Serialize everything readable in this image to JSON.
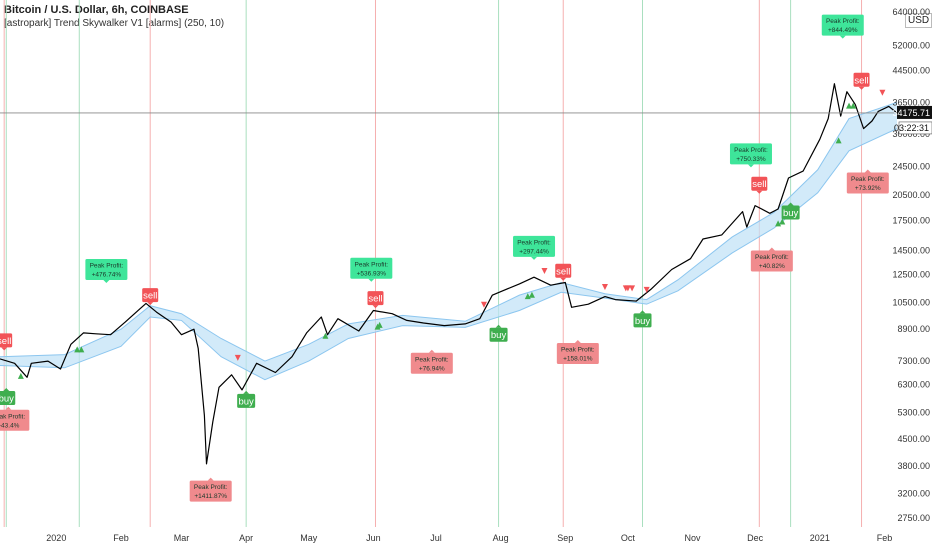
{
  "header": {
    "title": "Bitcoin / U.S. Dollar, 6h, COINBASE",
    "indicator": "[astropark] Trend Skywalker V1 [alarms] (250, 10)",
    "currency_button": "USD"
  },
  "price_badges": {
    "price": "34175.71",
    "timer": "03:22:31"
  },
  "colors": {
    "price": "#000000",
    "band_fill": "#bfe1f7",
    "band_line": "#8cc6ef",
    "buy": "#3fae4f",
    "sell": "#f25357",
    "profit_buy": "#3ee59a",
    "profit_sell": "#f08a8d",
    "vline_red": "#f5b0b0",
    "vline_green": "#a9dfbf",
    "badge": "#131722"
  },
  "chart_data": {
    "type": "line",
    "y_scale": "log",
    "ylim": [
      2600,
      69000
    ],
    "y_ticks": [
      64000,
      52000,
      44500,
      36500,
      30000,
      24500,
      20500,
      17500,
      14500,
      12500,
      10500,
      8900,
      7300,
      6300,
      5300,
      4500,
      3800,
      3200,
      2750
    ],
    "x_ticks": [
      {
        "label": "2020",
        "date": "2020-01-01"
      },
      {
        "label": "Feb",
        "date": "2020-02-01"
      },
      {
        "label": "Mar",
        "date": "2020-03-01"
      },
      {
        "label": "Apr",
        "date": "2020-04-01"
      },
      {
        "label": "May",
        "date": "2020-05-01"
      },
      {
        "label": "Jun",
        "date": "2020-06-01"
      },
      {
        "label": "Jul",
        "date": "2020-07-01"
      },
      {
        "label": "Aug",
        "date": "2020-08-01"
      },
      {
        "label": "Sep",
        "date": "2020-09-01"
      },
      {
        "label": "Oct",
        "date": "2020-10-01"
      },
      {
        "label": "Nov",
        "date": "2020-11-01"
      },
      {
        "label": "Dec",
        "date": "2020-12-01"
      },
      {
        "label": "2021",
        "date": "2021-01-01"
      },
      {
        "label": "Feb",
        "date": "2021-02-01"
      }
    ],
    "x_range": [
      "2019-12-05",
      "2021-02-07"
    ],
    "price_series": [
      [
        "2019-12-05",
        7400
      ],
      [
        "2019-12-12",
        7200
      ],
      [
        "2019-12-18",
        6600
      ],
      [
        "2019-12-20",
        7200
      ],
      [
        "2019-12-28",
        7300
      ],
      [
        "2020-01-03",
        6950
      ],
      [
        "2020-01-08",
        8100
      ],
      [
        "2020-01-14",
        8700
      ],
      [
        "2020-01-20",
        8650
      ],
      [
        "2020-01-27",
        8600
      ],
      [
        "2020-02-03",
        9300
      ],
      [
        "2020-02-10",
        10100
      ],
      [
        "2020-02-13",
        10450
      ],
      [
        "2020-02-18",
        9900
      ],
      [
        "2020-02-25",
        9300
      ],
      [
        "2020-03-01",
        8600
      ],
      [
        "2020-03-07",
        8900
      ],
      [
        "2020-03-09",
        7900
      ],
      [
        "2020-03-12",
        5200
      ],
      [
        "2020-03-13",
        3850
      ],
      [
        "2020-03-16",
        5000
      ],
      [
        "2020-03-19",
        6200
      ],
      [
        "2020-03-25",
        6700
      ],
      [
        "2020-03-30",
        6100
      ],
      [
        "2020-04-06",
        7200
      ],
      [
        "2020-04-15",
        6800
      ],
      [
        "2020-04-23",
        7500
      ],
      [
        "2020-04-30",
        8700
      ],
      [
        "2020-05-07",
        9600
      ],
      [
        "2020-05-10",
        8600
      ],
      [
        "2020-05-15",
        9500
      ],
      [
        "2020-05-25",
        8800
      ],
      [
        "2020-06-01",
        10000
      ],
      [
        "2020-06-10",
        9800
      ],
      [
        "2020-06-17",
        9400
      ],
      [
        "2020-06-25",
        9250
      ],
      [
        "2020-07-05",
        9100
      ],
      [
        "2020-07-15",
        9200
      ],
      [
        "2020-07-22",
        9500
      ],
      [
        "2020-07-28",
        11000
      ],
      [
        "2020-08-02",
        11300
      ],
      [
        "2020-08-10",
        11800
      ],
      [
        "2020-08-17",
        12300
      ],
      [
        "2020-08-25",
        11700
      ],
      [
        "2020-09-01",
        11900
      ],
      [
        "2020-09-04",
        10200
      ],
      [
        "2020-09-12",
        10400
      ],
      [
        "2020-09-20",
        10900
      ],
      [
        "2020-09-25",
        10700
      ],
      [
        "2020-10-05",
        10600
      ],
      [
        "2020-10-12",
        11400
      ],
      [
        "2020-10-22",
        12900
      ],
      [
        "2020-10-31",
        13800
      ],
      [
        "2020-11-06",
        15600
      ],
      [
        "2020-11-15",
        16000
      ],
      [
        "2020-11-25",
        18500
      ],
      [
        "2020-11-27",
        16800
      ],
      [
        "2020-12-01",
        19200
      ],
      [
        "2020-12-08",
        18300
      ],
      [
        "2020-12-12",
        18800
      ],
      [
        "2020-12-17",
        22800
      ],
      [
        "2020-12-24",
        23800
      ],
      [
        "2021-01-01",
        29000
      ],
      [
        "2021-01-05",
        33000
      ],
      [
        "2021-01-08",
        41000
      ],
      [
        "2021-01-11",
        33500
      ],
      [
        "2021-01-14",
        39000
      ],
      [
        "2021-01-18",
        36000
      ],
      [
        "2021-01-22",
        31000
      ],
      [
        "2021-01-26",
        32500
      ],
      [
        "2021-01-29",
        34500
      ],
      [
        "2021-02-03",
        35600
      ],
      [
        "2021-02-07",
        34175
      ]
    ],
    "band_upper": [
      [
        "2019-12-05",
        7500
      ],
      [
        "2020-01-05",
        7600
      ],
      [
        "2020-02-01",
        8900
      ],
      [
        "2020-02-15",
        10300
      ],
      [
        "2020-03-01",
        9800
      ],
      [
        "2020-03-20",
        8400
      ],
      [
        "2020-04-10",
        7300
      ],
      [
        "2020-05-01",
        8100
      ],
      [
        "2020-05-20",
        9200
      ],
      [
        "2020-06-15",
        9700
      ],
      [
        "2020-07-15",
        9350
      ],
      [
        "2020-08-10",
        11000
      ],
      [
        "2020-08-30",
        11900
      ],
      [
        "2020-09-20",
        11100
      ],
      [
        "2020-10-10",
        10700
      ],
      [
        "2020-10-25",
        12100
      ],
      [
        "2020-11-20",
        15800
      ],
      [
        "2020-12-10",
        18400
      ],
      [
        "2020-12-31",
        24000
      ],
      [
        "2021-01-15",
        33000
      ],
      [
        "2021-02-07",
        36500
      ]
    ],
    "band_lower": [
      [
        "2019-12-05",
        7100
      ],
      [
        "2020-01-05",
        7000
      ],
      [
        "2020-02-01",
        8000
      ],
      [
        "2020-02-15",
        9600
      ],
      [
        "2020-03-01",
        9400
      ],
      [
        "2020-03-20",
        7500
      ],
      [
        "2020-04-10",
        6500
      ],
      [
        "2020-05-01",
        7300
      ],
      [
        "2020-05-20",
        8400
      ],
      [
        "2020-06-15",
        9100
      ],
      [
        "2020-07-15",
        9000
      ],
      [
        "2020-08-10",
        10000
      ],
      [
        "2020-08-30",
        11200
      ],
      [
        "2020-09-20",
        10800
      ],
      [
        "2020-10-10",
        10400
      ],
      [
        "2020-10-25",
        11300
      ],
      [
        "2020-11-20",
        14300
      ],
      [
        "2020-12-10",
        16700
      ],
      [
        "2020-12-31",
        20800
      ],
      [
        "2021-01-15",
        27000
      ],
      [
        "2021-02-07",
        31000
      ]
    ],
    "signals": [
      {
        "type": "sell",
        "label": "sell",
        "date": "2019-12-07",
        "price": 8300
      },
      {
        "type": "buy",
        "label": "buy",
        "date": "2019-12-08",
        "price": 5800
      },
      {
        "type": "sell",
        "label": "sell",
        "date": "2020-02-15",
        "price": 11000
      },
      {
        "type": "buy",
        "label": "buy",
        "date": "2020-04-01",
        "price": 5700
      },
      {
        "type": "sell",
        "label": "sell",
        "date": "2020-06-02",
        "price": 10800
      },
      {
        "type": "buy",
        "label": "buy",
        "date": "2020-07-31",
        "price": 8600
      },
      {
        "type": "sell",
        "label": "sell",
        "date": "2020-08-31",
        "price": 12800
      },
      {
        "type": "buy",
        "label": "buy",
        "date": "2020-10-08",
        "price": 9400
      },
      {
        "type": "sell",
        "label": "sell",
        "date": "2020-12-03",
        "price": 22000
      },
      {
        "type": "buy",
        "label": "buy",
        "date": "2020-12-18",
        "price": 18400
      },
      {
        "type": "sell",
        "label": "sell",
        "date": "2021-01-21",
        "price": 42000
      }
    ],
    "peak_profits": [
      {
        "kind": "short",
        "label": "Peak Profit:",
        "value": "+43.4%",
        "date": "2019-12-09",
        "price": 5050
      },
      {
        "kind": "long",
        "label": "Peak Profit:",
        "value": "+476.74%",
        "date": "2020-01-25",
        "price": 12900
      },
      {
        "kind": "short",
        "label": "Peak Profit:",
        "value": "+1411.87%",
        "date": "2020-03-15",
        "price": 3250
      },
      {
        "kind": "long",
        "label": "Peak Profit:",
        "value": "+536.93%",
        "date": "2020-05-31",
        "price": 13000
      },
      {
        "kind": "short",
        "label": "Peak Profit:",
        "value": "+76.94%",
        "date": "2020-06-29",
        "price": 7200
      },
      {
        "kind": "long",
        "label": "Peak Profit:",
        "value": "+297.44%",
        "date": "2020-08-17",
        "price": 14900
      },
      {
        "kind": "short",
        "label": "Peak Profit:",
        "value": "+158.01%",
        "date": "2020-09-07",
        "price": 7650
      },
      {
        "kind": "long",
        "label": "Peak Profit:",
        "value": "+750.33%",
        "date": "2020-11-29",
        "price": 26500
      },
      {
        "kind": "short",
        "label": "Peak Profit:",
        "value": "+40.82%",
        "date": "2020-12-09",
        "price": 13600
      },
      {
        "kind": "long",
        "label": "Peak Profit:",
        "value": "+844.49%",
        "date": "2021-01-12",
        "price": 59000
      },
      {
        "kind": "short",
        "label": "Peak Profit:",
        "value": "+73.92%",
        "date": "2021-01-24",
        "price": 22100
      }
    ],
    "small_markers": [
      {
        "type": "up",
        "date": "2019-12-15",
        "price": 6700
      },
      {
        "type": "up",
        "date": "2020-01-11",
        "price": 7900
      },
      {
        "type": "up",
        "date": "2020-01-13",
        "price": 7900
      },
      {
        "type": "down",
        "date": "2020-03-28",
        "price": 7400
      },
      {
        "type": "up",
        "date": "2020-05-09",
        "price": 8600
      },
      {
        "type": "down",
        "date": "2020-06-02",
        "price": 10500
      },
      {
        "type": "up",
        "date": "2020-06-03",
        "price": 9100
      },
      {
        "type": "up",
        "date": "2020-06-04",
        "price": 9200
      },
      {
        "type": "down",
        "date": "2020-07-24",
        "price": 10300
      },
      {
        "type": "up",
        "date": "2020-08-14",
        "price": 11000
      },
      {
        "type": "up",
        "date": "2020-08-16",
        "price": 11100
      },
      {
        "type": "down",
        "date": "2020-08-22",
        "price": 12700
      },
      {
        "type": "down",
        "date": "2020-09-20",
        "price": 11500
      },
      {
        "type": "down",
        "date": "2020-09-30",
        "price": 11400
      },
      {
        "type": "down",
        "date": "2020-10-01",
        "price": 11400
      },
      {
        "type": "down",
        "date": "2020-10-03",
        "price": 11400
      },
      {
        "type": "down",
        "date": "2020-10-10",
        "price": 11300
      },
      {
        "type": "up",
        "date": "2020-12-12",
        "price": 17300
      },
      {
        "type": "up",
        "date": "2020-12-14",
        "price": 17500
      },
      {
        "type": "up",
        "date": "2021-01-10",
        "price": 29000
      },
      {
        "type": "up",
        "date": "2021-01-15",
        "price": 36000
      },
      {
        "type": "up",
        "date": "2021-01-17",
        "price": 36000
      },
      {
        "type": "down",
        "date": "2021-01-31",
        "price": 38500
      }
    ],
    "vlines": [
      {
        "color": "red",
        "date": "2019-12-07"
      },
      {
        "color": "green",
        "date": "2019-12-08"
      },
      {
        "color": "green",
        "date": "2020-01-12"
      },
      {
        "color": "red",
        "date": "2020-02-15"
      },
      {
        "color": "green",
        "date": "2020-04-01"
      },
      {
        "color": "red",
        "date": "2020-06-02"
      },
      {
        "color": "green",
        "date": "2020-07-31"
      },
      {
        "color": "red",
        "date": "2020-08-31"
      },
      {
        "color": "green",
        "date": "2020-10-08"
      },
      {
        "color": "red",
        "date": "2020-12-03"
      },
      {
        "color": "green",
        "date": "2020-12-18"
      },
      {
        "color": "red",
        "date": "2021-01-21"
      }
    ],
    "current_price": 34175.71,
    "grid": true
  }
}
